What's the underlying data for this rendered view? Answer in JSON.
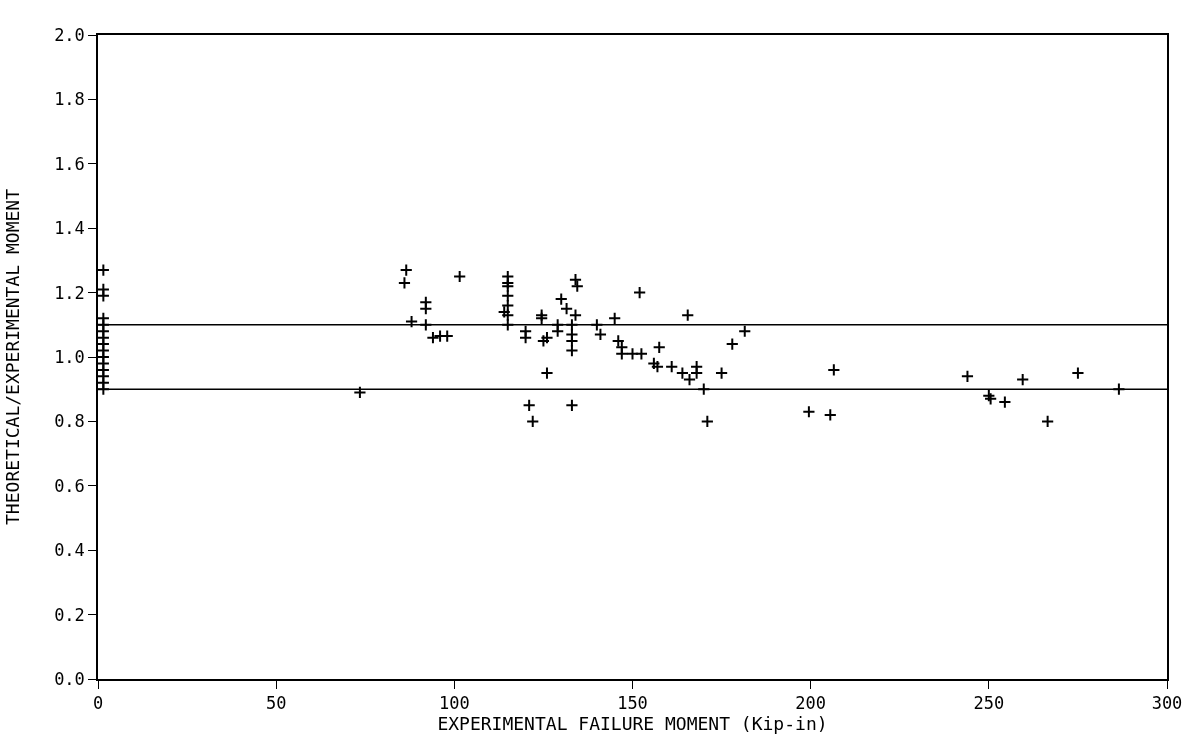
{
  "chart_data": {
    "type": "scatter",
    "xlabel": "EXPERIMENTAL FAILURE MOMENT (Kip-in)",
    "ylabel": "THEORETICAL/EXPERIMENTAL MOMENT",
    "series": [
      {
        "color": "#000000",
        "x": [
          1.5,
          1.5,
          1.5,
          1.5,
          1.5,
          1.5,
          1.5,
          1.5,
          1.5,
          1.5,
          1.5,
          1.5,
          1.5,
          1.5,
          1.5,
          73.5,
          86,
          86.5,
          88,
          92,
          92,
          92,
          94,
          96,
          98,
          101.5,
          114,
          115,
          115,
          115,
          115,
          115,
          115,
          115,
          120,
          120,
          121,
          122,
          124.5,
          124.5,
          125,
          126,
          126,
          129,
          129,
          130,
          131.5,
          133,
          133,
          133,
          133,
          133,
          134,
          134.5,
          134,
          140,
          141,
          145,
          146,
          147,
          147,
          150,
          152,
          152.5,
          156,
          157,
          157.5,
          161,
          164,
          165.5,
          166,
          168,
          168,
          170,
          171,
          175,
          178,
          181.5,
          199.5,
          205.5,
          206.5,
          244,
          250,
          250.5,
          254.5,
          259.5,
          266.5,
          275,
          286.5
        ],
        "values": [
          1.27,
          1.21,
          1.19,
          1.12,
          1.1,
          1.08,
          1.06,
          1.04,
          1.02,
          1.0,
          0.98,
          0.96,
          0.94,
          0.92,
          0.9,
          0.89,
          1.23,
          1.27,
          1.11,
          1.17,
          1.15,
          1.1,
          1.06,
          1.065,
          1.065,
          1.25,
          1.14,
          1.25,
          1.23,
          1.22,
          1.19,
          1.16,
          1.13,
          1.1,
          1.08,
          1.06,
          0.85,
          0.8,
          1.13,
          1.12,
          1.05,
          1.06,
          0.95,
          1.1,
          1.08,
          1.18,
          1.15,
          1.1,
          1.07,
          1.05,
          1.02,
          0.85,
          1.24,
          1.22,
          1.13,
          1.1,
          1.07,
          1.12,
          1.05,
          1.03,
          1.01,
          1.01,
          1.2,
          1.01,
          0.98,
          0.97,
          1.03,
          0.97,
          0.95,
          1.13,
          0.93,
          0.97,
          0.95,
          0.9,
          0.8,
          0.95,
          1.04,
          1.08,
          0.83,
          0.82,
          0.96,
          0.94,
          0.88,
          0.87,
          0.86,
          0.93,
          0.8,
          0.95,
          0.9
        ]
      }
    ],
    "marker": "cross",
    "xlim": [
      0,
      300
    ],
    "xticks": [
      0,
      50,
      100,
      150,
      200,
      250,
      300
    ],
    "ylim": [
      0,
      2
    ],
    "yticks": [
      {
        "value": 0,
        "label": "0.0"
      },
      {
        "value": 0.2,
        "label": "0.2"
      },
      {
        "value": 0.4,
        "label": "0.4"
      },
      {
        "value": 0.6,
        "label": "0.6"
      },
      {
        "value": 0.8,
        "label": "0.8"
      },
      {
        "value": 1.0,
        "label": "1.0"
      },
      {
        "value": 1.2,
        "label": "1.2"
      },
      {
        "value": 1.4,
        "label": "1.4"
      },
      {
        "value": 1.6,
        "label": "1.6"
      },
      {
        "value": 1.8,
        "label": "1.8"
      },
      {
        "value": 2.0,
        "label": "2.0"
      }
    ],
    "ref_lines": [
      {
        "axis": "y",
        "value": 1.1,
        "color": "#000000"
      },
      {
        "axis": "y",
        "value": 0.9,
        "color": "#000000"
      }
    ]
  }
}
